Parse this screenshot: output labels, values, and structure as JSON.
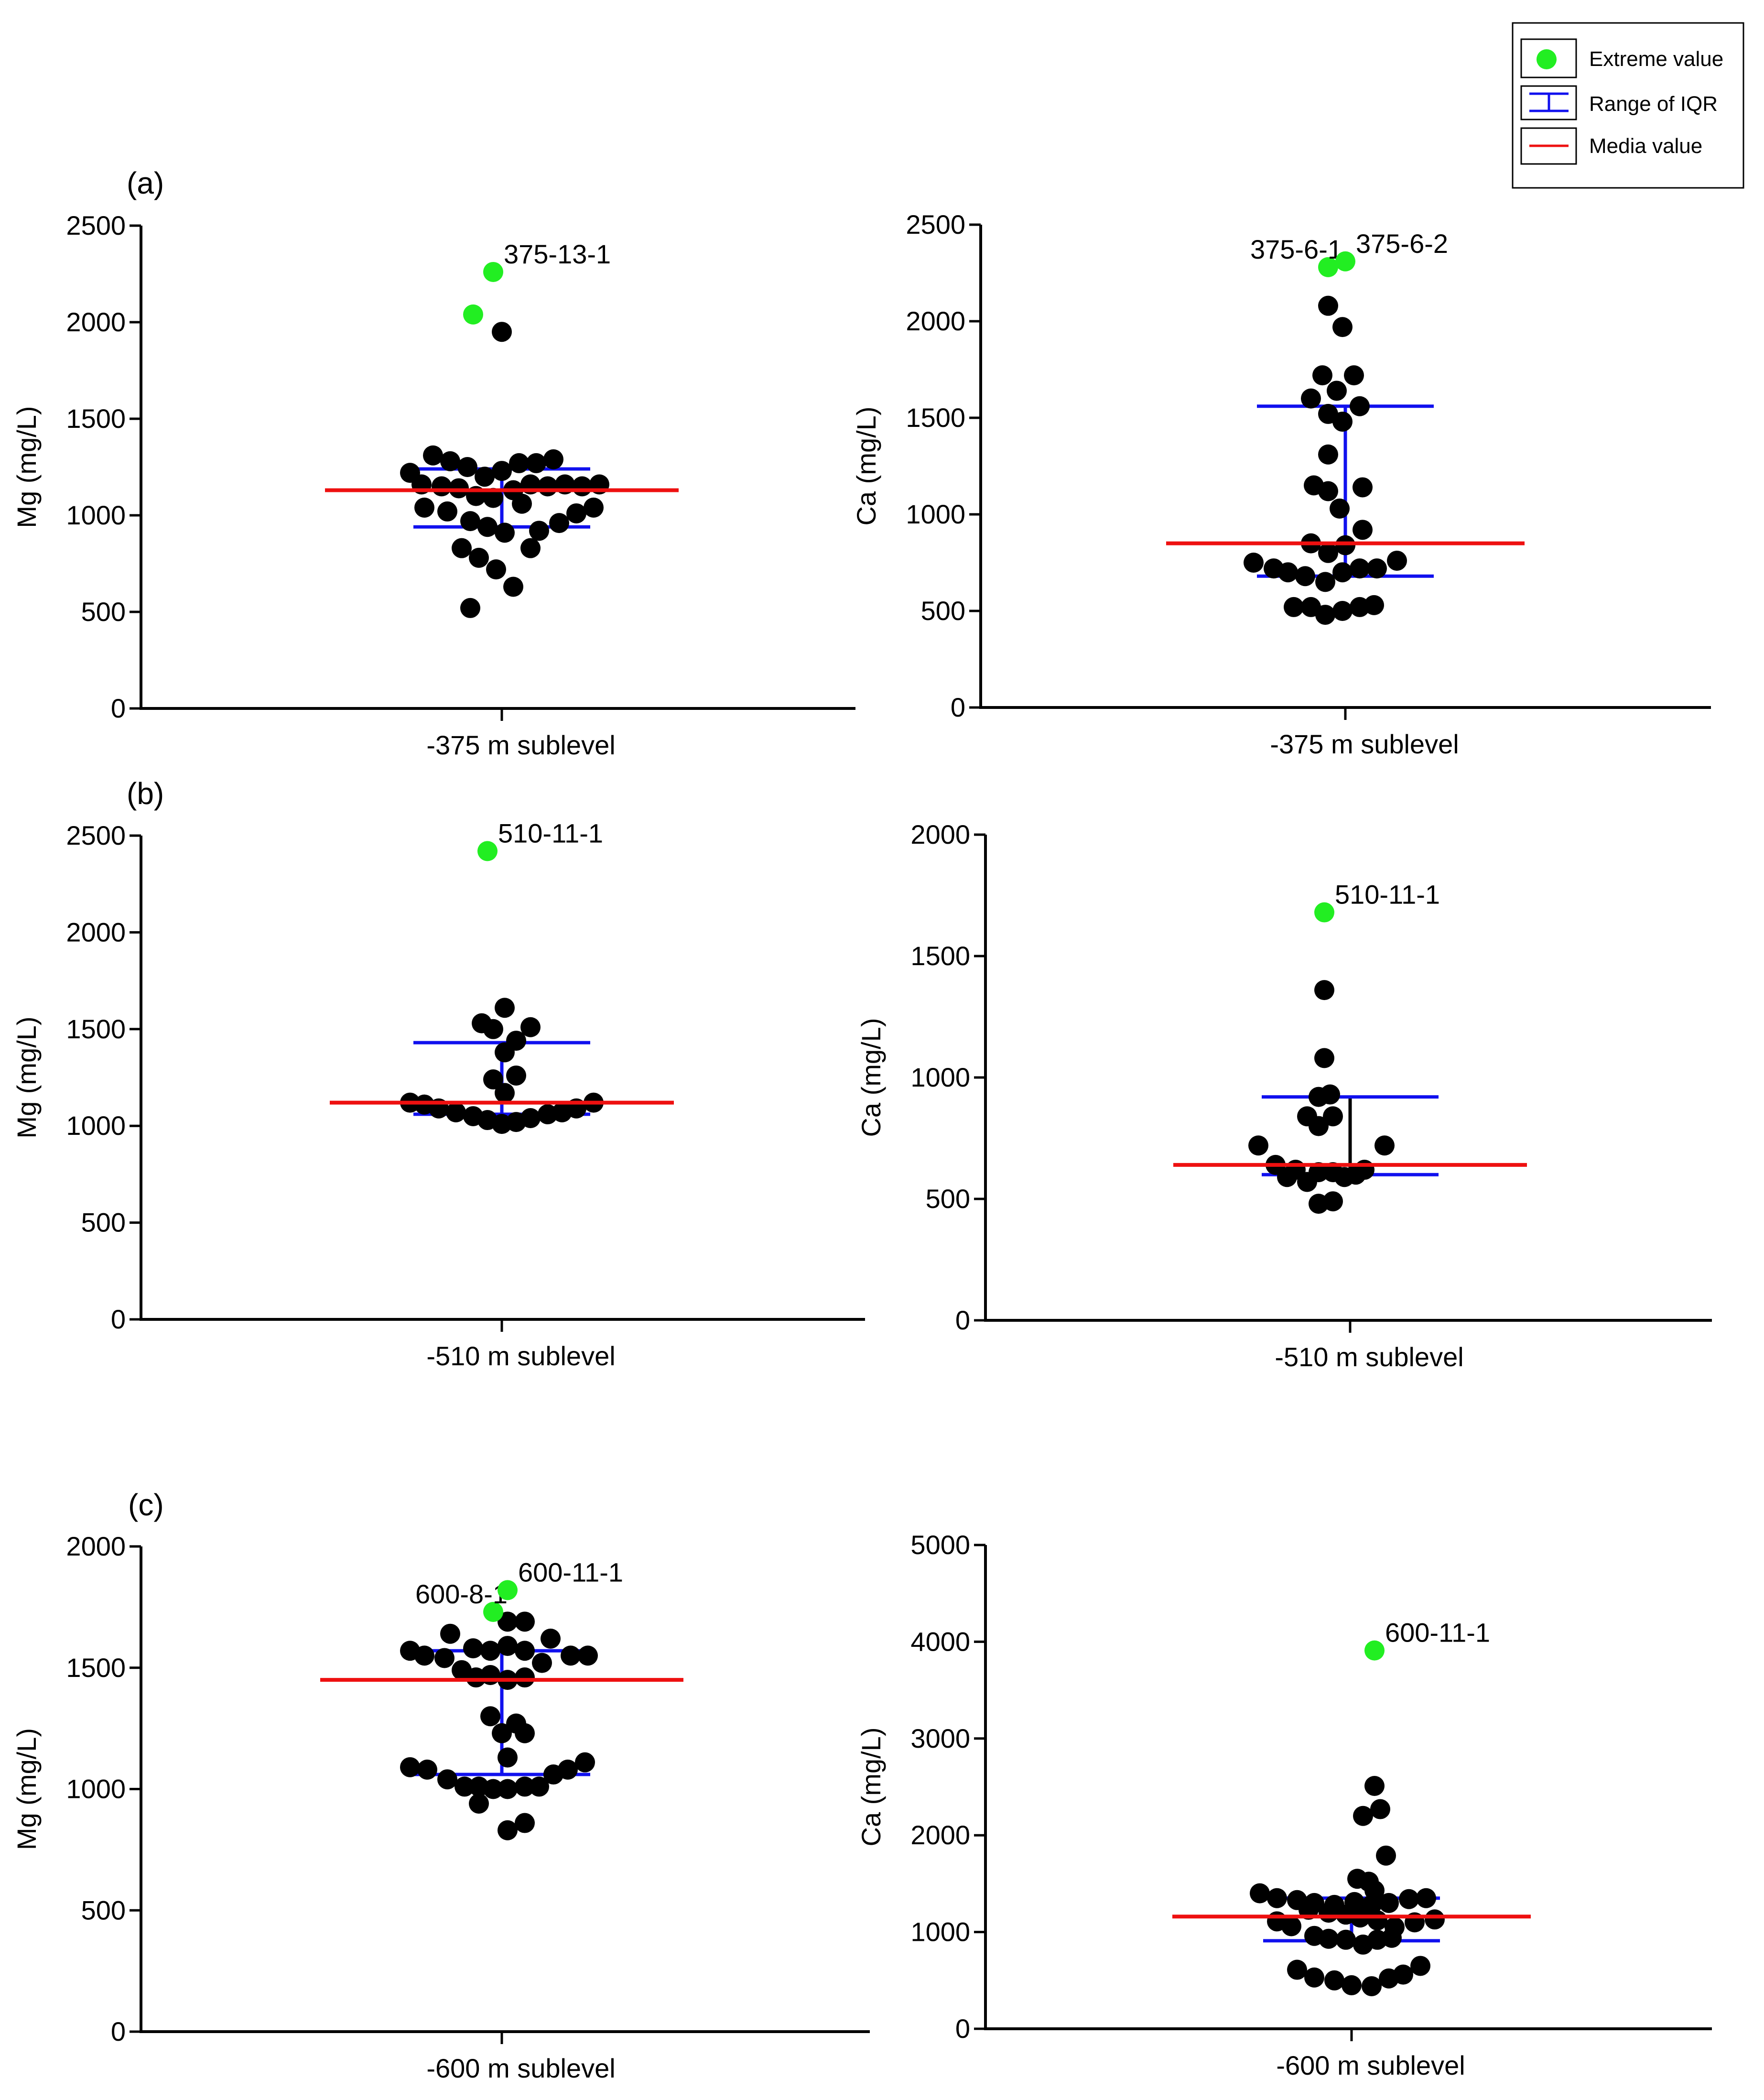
{
  "legend": {
    "items": [
      {
        "label": "Extreme value",
        "symbol": "green-dot"
      },
      {
        "label": "Range of IQR",
        "symbol": "blue-errorbar"
      },
      {
        "label": "Media value",
        "symbol": "red-line"
      }
    ]
  },
  "panel_labels": [
    "(a)",
    "(b)",
    "(c)"
  ],
  "colors": {
    "point": "#000000",
    "extreme": "#22ee22",
    "iqr": "#1010ee",
    "median": "#ee1010",
    "axis": "#000000"
  },
  "chart_data": [
    {
      "type": "scatter",
      "id": "a-mg",
      "panel": "(a)",
      "ylabel": "Mg (mg/L)",
      "xlabel": "-375 m sublevel",
      "ylim": [
        0,
        2500
      ],
      "yticks": [
        0,
        500,
        1000,
        1500,
        2000,
        2500
      ],
      "median": 1130,
      "iqr": [
        940,
        1240
      ],
      "iqr_stem": "blue",
      "points": [
        [
          0.0,
          1220
        ],
        [
          0.4,
          1160
        ],
        [
          1.1,
          1150
        ],
        [
          1.7,
          1140
        ],
        [
          2.3,
          1100
        ],
        [
          2.9,
          1090
        ],
        [
          3.6,
          1130
        ],
        [
          4.2,
          1160
        ],
        [
          4.8,
          1150
        ],
        [
          5.4,
          1160
        ],
        [
          6.0,
          1150
        ],
        [
          6.6,
          1160
        ],
        [
          0.8,
          1310
        ],
        [
          1.4,
          1280
        ],
        [
          2.0,
          1250
        ],
        [
          2.6,
          1200
        ],
        [
          3.2,
          1230
        ],
        [
          3.8,
          1270
        ],
        [
          4.4,
          1270
        ],
        [
          5.0,
          1290
        ],
        [
          0.5,
          1040
        ],
        [
          1.3,
          1020
        ],
        [
          2.1,
          970
        ],
        [
          2.7,
          940
        ],
        [
          3.3,
          910
        ],
        [
          3.9,
          1060
        ],
        [
          4.5,
          920
        ],
        [
          5.2,
          960
        ],
        [
          5.8,
          1010
        ],
        [
          6.4,
          1040
        ],
        [
          1.8,
          830
        ],
        [
          2.4,
          780
        ],
        [
          3.0,
          720
        ],
        [
          3.6,
          630
        ],
        [
          4.2,
          830
        ],
        [
          2.1,
          520
        ],
        [
          3.2,
          1950
        ]
      ],
      "extremes": [
        {
          "x": 2.9,
          "y": 2260,
          "label": "375-13-1",
          "label_side": "right"
        },
        {
          "x": 2.2,
          "y": 2040,
          "label": "",
          "label_side": "right"
        }
      ]
    },
    {
      "type": "scatter",
      "id": "a-ca",
      "panel": "(a)",
      "ylabel": "Ca (mg/L)",
      "xlabel": "-375 m sublevel",
      "ylim": [
        0,
        2500
      ],
      "yticks": [
        0,
        500,
        1000,
        1500,
        2000,
        2500
      ],
      "median": 850,
      "iqr": [
        680,
        1560
      ],
      "iqr_stem": "blue",
      "points": [
        [
          0.0,
          750
        ],
        [
          0.7,
          720
        ],
        [
          1.2,
          700
        ],
        [
          1.8,
          680
        ],
        [
          2.5,
          650
        ],
        [
          3.1,
          700
        ],
        [
          3.7,
          720
        ],
        [
          4.3,
          720
        ],
        [
          5.0,
          760
        ],
        [
          1.4,
          520
        ],
        [
          2.0,
          520
        ],
        [
          2.5,
          480
        ],
        [
          3.1,
          500
        ],
        [
          3.7,
          520
        ],
        [
          4.2,
          530
        ],
        [
          2.0,
          850
        ],
        [
          2.6,
          800
        ],
        [
          3.2,
          840
        ],
        [
          3.8,
          920
        ],
        [
          2.1,
          1150
        ],
        [
          2.6,
          1120
        ],
        [
          3.0,
          1030
        ],
        [
          3.8,
          1140
        ],
        [
          2.6,
          1310
        ],
        [
          2.0,
          1600
        ],
        [
          2.4,
          1720
        ],
        [
          2.6,
          1520
        ],
        [
          2.9,
          1640
        ],
        [
          3.1,
          1480
        ],
        [
          3.5,
          1720
        ],
        [
          3.7,
          1560
        ],
        [
          2.6,
          2080
        ],
        [
          3.1,
          1970
        ]
      ],
      "extremes": [
        {
          "x": 2.6,
          "y": 2280,
          "label": "375-6-1",
          "label_side": "left"
        },
        {
          "x": 3.2,
          "y": 2310,
          "label": "375-6-2",
          "label_side": "right"
        }
      ]
    },
    {
      "type": "scatter",
      "id": "b-mg",
      "panel": "(b)",
      "ylabel": "Mg (mg/L)",
      "xlabel": "-510 m sublevel",
      "ylim": [
        0,
        2500
      ],
      "yticks": [
        0,
        500,
        1000,
        1500,
        2000,
        2500
      ],
      "median": 1120,
      "iqr": [
        1060,
        1430
      ],
      "iqr_stem": "blue",
      "points": [
        [
          0.0,
          1120
        ],
        [
          0.5,
          1110
        ],
        [
          1.0,
          1090
        ],
        [
          1.6,
          1070
        ],
        [
          2.2,
          1050
        ],
        [
          2.7,
          1030
        ],
        [
          3.2,
          1010
        ],
        [
          3.7,
          1020
        ],
        [
          4.2,
          1040
        ],
        [
          4.8,
          1060
        ],
        [
          5.3,
          1070
        ],
        [
          5.8,
          1090
        ],
        [
          6.4,
          1120
        ],
        [
          2.5,
          1530
        ],
        [
          2.9,
          1500
        ],
        [
          3.3,
          1610
        ],
        [
          4.2,
          1510
        ],
        [
          3.3,
          1380
        ],
        [
          3.7,
          1440
        ],
        [
          2.9,
          1240
        ],
        [
          3.7,
          1260
        ],
        [
          3.3,
          1170
        ]
      ],
      "extremes": [
        {
          "x": 2.7,
          "y": 2420,
          "label": "510-11-1",
          "label_side": "right"
        }
      ]
    },
    {
      "type": "scatter",
      "id": "b-ca",
      "panel": "(b)",
      "ylabel": "Ca (mg/L)",
      "xlabel": "-510 m sublevel",
      "ylim": [
        0,
        2000
      ],
      "yticks": [
        0,
        500,
        1000,
        1500,
        2000
      ],
      "median": 640,
      "iqr": [
        600,
        920
      ],
      "iqr_stem": "black",
      "points": [
        [
          0.0,
          720
        ],
        [
          0.6,
          640
        ],
        [
          1.0,
          590
        ],
        [
          1.3,
          620
        ],
        [
          1.7,
          570
        ],
        [
          2.1,
          610
        ],
        [
          2.6,
          610
        ],
        [
          3.0,
          590
        ],
        [
          3.4,
          600
        ],
        [
          3.7,
          620
        ],
        [
          4.4,
          720
        ],
        [
          2.1,
          480
        ],
        [
          2.6,
          490
        ],
        [
          1.7,
          840
        ],
        [
          2.1,
          800
        ],
        [
          2.6,
          840
        ],
        [
          2.1,
          920
        ],
        [
          2.5,
          930
        ],
        [
          2.3,
          1080
        ],
        [
          2.3,
          1360
        ]
      ],
      "extremes": [
        {
          "x": 2.3,
          "y": 1680,
          "label": "510-11-1",
          "label_side": "right"
        }
      ]
    },
    {
      "type": "scatter",
      "id": "c-mg",
      "panel": "(c)",
      "ylabel": "Mg (mg/L)",
      "xlabel": "-600 m sublevel",
      "ylim": [
        0,
        2000
      ],
      "yticks": [
        0,
        500,
        1000,
        1500,
        2000
      ],
      "median": 1450,
      "iqr": [
        1060,
        1570
      ],
      "iqr_stem": "blue",
      "points": [
        [
          0.0,
          1570
        ],
        [
          0.5,
          1550
        ],
        [
          1.2,
          1540
        ],
        [
          1.8,
          1490
        ],
        [
          2.3,
          1460
        ],
        [
          2.8,
          1470
        ],
        [
          3.4,
          1450
        ],
        [
          4.0,
          1460
        ],
        [
          4.6,
          1520
        ],
        [
          5.6,
          1550
        ],
        [
          6.2,
          1550
        ],
        [
          1.4,
          1640
        ],
        [
          2.2,
          1580
        ],
        [
          2.8,
          1570
        ],
        [
          3.4,
          1590
        ],
        [
          4.0,
          1570
        ],
        [
          4.9,
          1620
        ],
        [
          3.4,
          1690
        ],
        [
          4.0,
          1690
        ],
        [
          2.8,
          1300
        ],
        [
          3.2,
          1230
        ],
        [
          3.7,
          1270
        ],
        [
          4.0,
          1230
        ],
        [
          3.4,
          1130
        ],
        [
          0.0,
          1090
        ],
        [
          0.6,
          1080
        ],
        [
          1.3,
          1040
        ],
        [
          1.9,
          1010
        ],
        [
          2.4,
          1010
        ],
        [
          2.9,
          1000
        ],
        [
          3.4,
          1000
        ],
        [
          4.0,
          1010
        ],
        [
          4.5,
          1010
        ],
        [
          5.0,
          1060
        ],
        [
          5.5,
          1080
        ],
        [
          6.1,
          1110
        ],
        [
          2.4,
          940
        ],
        [
          3.4,
          830
        ],
        [
          4.0,
          860
        ]
      ],
      "extremes": [
        {
          "x": 2.9,
          "y": 1730,
          "label": "600-8-1",
          "label_side": "left"
        },
        {
          "x": 3.4,
          "y": 1820,
          "label": "600-11-1",
          "label_side": "right"
        }
      ]
    },
    {
      "type": "scatter",
      "id": "c-ca",
      "panel": "(c)",
      "ylabel": "Ca (mg/L)",
      "xlabel": "-600 m sublevel",
      "ylim": [
        0,
        5000
      ],
      "yticks": [
        0,
        1000,
        2000,
        3000,
        4000,
        5000
      ],
      "median": 1160,
      "iqr": [
        910,
        1350
      ],
      "iqr_stem": "blue",
      "points": [
        [
          0.0,
          1400
        ],
        [
          0.6,
          1350
        ],
        [
          1.3,
          1330
        ],
        [
          1.9,
          1300
        ],
        [
          2.6,
          1280
        ],
        [
          3.3,
          1310
        ],
        [
          3.9,
          1280
        ],
        [
          4.5,
          1300
        ],
        [
          5.2,
          1340
        ],
        [
          5.8,
          1350
        ],
        [
          0.6,
          1110
        ],
        [
          1.1,
          1060
        ],
        [
          1.7,
          1230
        ],
        [
          2.4,
          1200
        ],
        [
          3.0,
          1180
        ],
        [
          3.5,
          1150
        ],
        [
          4.1,
          1120
        ],
        [
          4.7,
          1050
        ],
        [
          5.4,
          1100
        ],
        [
          6.1,
          1130
        ],
        [
          1.9,
          960
        ],
        [
          2.4,
          930
        ],
        [
          3.0,
          920
        ],
        [
          3.6,
          870
        ],
        [
          4.1,
          920
        ],
        [
          4.6,
          940
        ],
        [
          1.3,
          610
        ],
        [
          1.9,
          530
        ],
        [
          2.6,
          500
        ],
        [
          3.2,
          450
        ],
        [
          3.9,
          440
        ],
        [
          4.5,
          520
        ],
        [
          5.0,
          560
        ],
        [
          5.6,
          650
        ],
        [
          3.4,
          1550
        ],
        [
          3.8,
          1520
        ],
        [
          4.0,
          1430
        ],
        [
          4.4,
          1790
        ],
        [
          3.6,
          2200
        ],
        [
          4.2,
          2270
        ],
        [
          4.0,
          2510
        ]
      ],
      "extremes": [
        {
          "x": 4.0,
          "y": 3910,
          "label": "600-11-1",
          "label_side": "right"
        }
      ]
    }
  ]
}
